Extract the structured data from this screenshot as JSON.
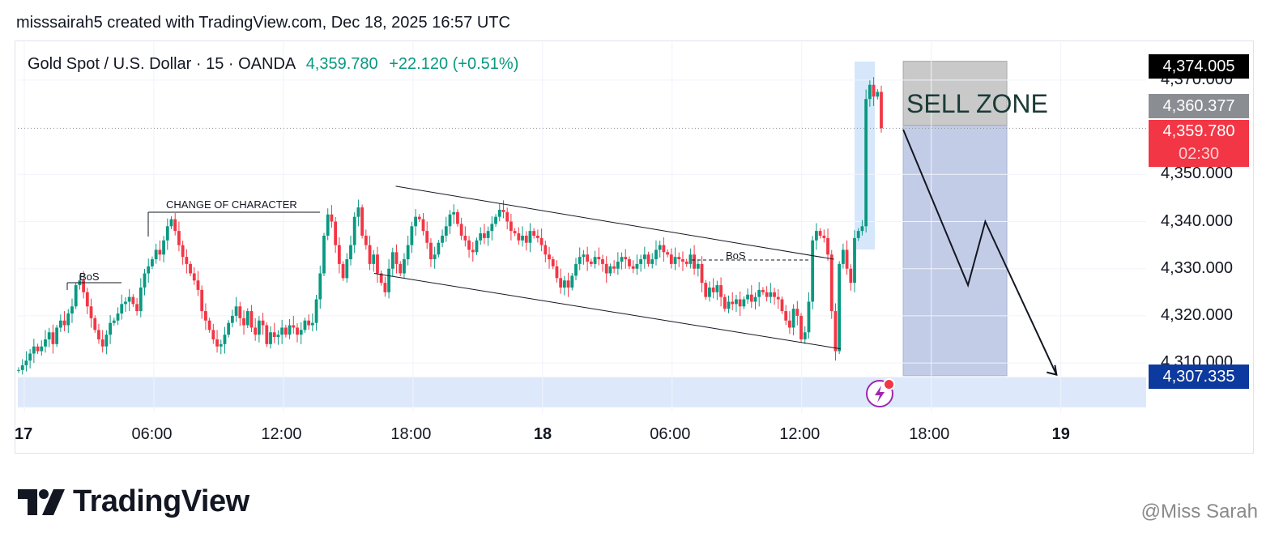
{
  "header": {
    "author_line": "misssairah5 created with TradingView.com, Dec 18, 2025 16:57 UTC"
  },
  "ticker": {
    "symbol": "Gold Spot / U.S. Dollar · 15 · OANDA",
    "price": "4,359.780",
    "change": "+22.120 (+0.51%)"
  },
  "price_tags": {
    "high": "4,374.005",
    "mid": "4,360.377",
    "last": "4,359.780",
    "countdown": "02:30",
    "target": "4,307.335"
  },
  "annotations": {
    "sell_zone": "SELL ZONE",
    "choch": "CHANGE OF CHARACTER",
    "bos1": "BoS",
    "bos2": "BoS"
  },
  "brand": {
    "logo_text": "TradingView"
  },
  "watermark": "@Miss Sarah",
  "colors": {
    "up": "#089981",
    "down": "#f23645",
    "sell_zone": "#c9c9c9",
    "target_zone": "#c3cce6",
    "support_zone": "#dde9fb",
    "last_tag": "#f23645",
    "target_tag": "#0d3a9e"
  },
  "chart_data": {
    "type": "candlestick",
    "symbol": "XAU/USD",
    "interval": "15",
    "ylim": [
      4303,
      4377
    ],
    "y_ticks": [
      "4,370.000",
      "4,350.000",
      "4,340.000",
      "4,330.000",
      "4,320.000",
      "4,310.000"
    ],
    "y_tick_values": [
      4370,
      4350,
      4340,
      4330,
      4320,
      4310
    ],
    "x_ticks": [
      {
        "label": "17",
        "bold": true
      },
      {
        "label": "06:00",
        "bold": false
      },
      {
        "label": "12:00",
        "bold": false
      },
      {
        "label": "18:00",
        "bold": false
      },
      {
        "label": "18",
        "bold": true
      },
      {
        "label": "06:00",
        "bold": false
      },
      {
        "label": "12:00",
        "bold": false
      },
      {
        "label": "18:00",
        "bold": false
      },
      {
        "label": "19",
        "bold": true
      }
    ],
    "x_tick_hours": [
      0,
      6,
      12,
      18,
      24,
      30,
      36,
      42,
      48
    ],
    "start_price": 4308.5,
    "closes": [
      4308.5,
      4309.5,
      4310.5,
      4312.0,
      4313.5,
      4312.5,
      4313.5,
      4315.0,
      4316.5,
      4314.0,
      4317.5,
      4319.0,
      4318.0,
      4320.5,
      4322.0,
      4326.5,
      4327.5,
      4325.0,
      4322.0,
      4319.5,
      4317.0,
      4315.0,
      4313.5,
      4316.0,
      4318.5,
      4319.0,
      4320.5,
      4322.5,
      4323.0,
      4324.0,
      4322.5,
      4321.0,
      4326.0,
      4329.0,
      4330.5,
      4332.0,
      4334.0,
      4333.0,
      4336.0,
      4339.0,
      4340.5,
      4338.0,
      4335.0,
      4332.5,
      4331.0,
      4329.0,
      4327.5,
      4325.5,
      4321.0,
      4319.0,
      4317.0,
      4315.0,
      4313.5,
      4314.0,
      4316.0,
      4318.5,
      4320.0,
      4322.0,
      4319.5,
      4318.0,
      4321.0,
      4317.5,
      4316.0,
      4319.0,
      4318.0,
      4314.0,
      4316.5,
      4315.5,
      4316.0,
      4317.5,
      4316.0,
      4318.0,
      4317.5,
      4316.0,
      4317.0,
      4319.0,
      4318.0,
      4318.5,
      4323.5,
      4329.0,
      4337.0,
      4341.5,
      4340.0,
      4335.0,
      4331.0,
      4328.0,
      4332.0,
      4335.0,
      4341.0,
      4343.0,
      4337.0,
      4335.0,
      4331.0,
      4333.0,
      4329.0,
      4327.0,
      4325.0,
      4330.0,
      4333.5,
      4331.0,
      4329.0,
      4332.0,
      4335.0,
      4339.0,
      4341.0,
      4340.5,
      4338.0,
      4335.5,
      4332.0,
      4333.0,
      4335.5,
      4337.0,
      4339.0,
      4341.5,
      4342.0,
      4339.5,
      4337.0,
      4336.0,
      4334.0,
      4333.5,
      4336.0,
      4337.5,
      4336.5,
      4338.0,
      4339.5,
      4341.0,
      4342.5,
      4342.0,
      4340.0,
      4338.0,
      4337.5,
      4336.0,
      4337.0,
      4335.5,
      4338.0,
      4337.0,
      4336.5,
      4335.0,
      4333.0,
      4332.0,
      4330.5,
      4328.0,
      4326.0,
      4327.5,
      4326.0,
      4328.5,
      4331.0,
      4332.5,
      4333.0,
      4331.5,
      4331.0,
      4332.5,
      4332.0,
      4331.0,
      4329.0,
      4330.5,
      4330.0,
      4331.5,
      4332.5,
      4332.0,
      4330.5,
      4330.0,
      4331.0,
      4332.0,
      4333.0,
      4331.0,
      4332.0,
      4334.0,
      4335.0,
      4333.5,
      4333.0,
      4331.0,
      4332.5,
      4332.0,
      4331.5,
      4331.0,
      4333.0,
      4330.0,
      4331.0,
      4327.0,
      4324.0,
      4326.0,
      4325.0,
      4326.5,
      4324.0,
      4321.5,
      4323.0,
      4322.5,
      4323.5,
      4322.0,
      4323.5,
      4324.5,
      4323.0,
      4324.0,
      4325.5,
      4325.0,
      4324.0,
      4325.0,
      4324.0,
      4323.5,
      4321.0,
      4319.0,
      4317.5,
      4321.5,
      4320.0,
      4315.0,
      4316.5,
      4323.0,
      4336.0,
      4338.0,
      4337.0,
      4336.5,
      4333.0,
      4321.0,
      4312.5,
      4331.0,
      4334.0,
      4330.0,
      4327.0,
      4336.5,
      4338.0,
      4339.0,
      4366.0,
      4369.0,
      4366.5,
      4367.5,
      4359.8
    ],
    "descending_channel": {
      "upper": [
        {
          "h": 17.2,
          "p": 4347.5
        },
        {
          "h": 37.5,
          "p": 4332.0
        }
      ],
      "lower": [
        {
          "h": 16.2,
          "p": 4329.0
        },
        {
          "h": 37.8,
          "p": 4313.0
        }
      ]
    },
    "projection_path": [
      {
        "h": 40.7,
        "p": 4359.5
      },
      {
        "h": 43.7,
        "p": 4326.5
      },
      {
        "h": 44.5,
        "p": 4340.0
      },
      {
        "h": 47.8,
        "p": 4307.5
      }
    ],
    "sell_zone": {
      "h0": 40.7,
      "h1": 45.5,
      "p_top": 4374.0,
      "p_bottom": 4360.4
    },
    "target_zone": {
      "h0": 40.7,
      "h1": 45.5,
      "p_top": 4360.4,
      "p_bottom": 4307.3
    },
    "support_zone": {
      "p_top": 4307.0,
      "p_bottom": 4300.6
    },
    "last_price_line": 4359.78
  }
}
